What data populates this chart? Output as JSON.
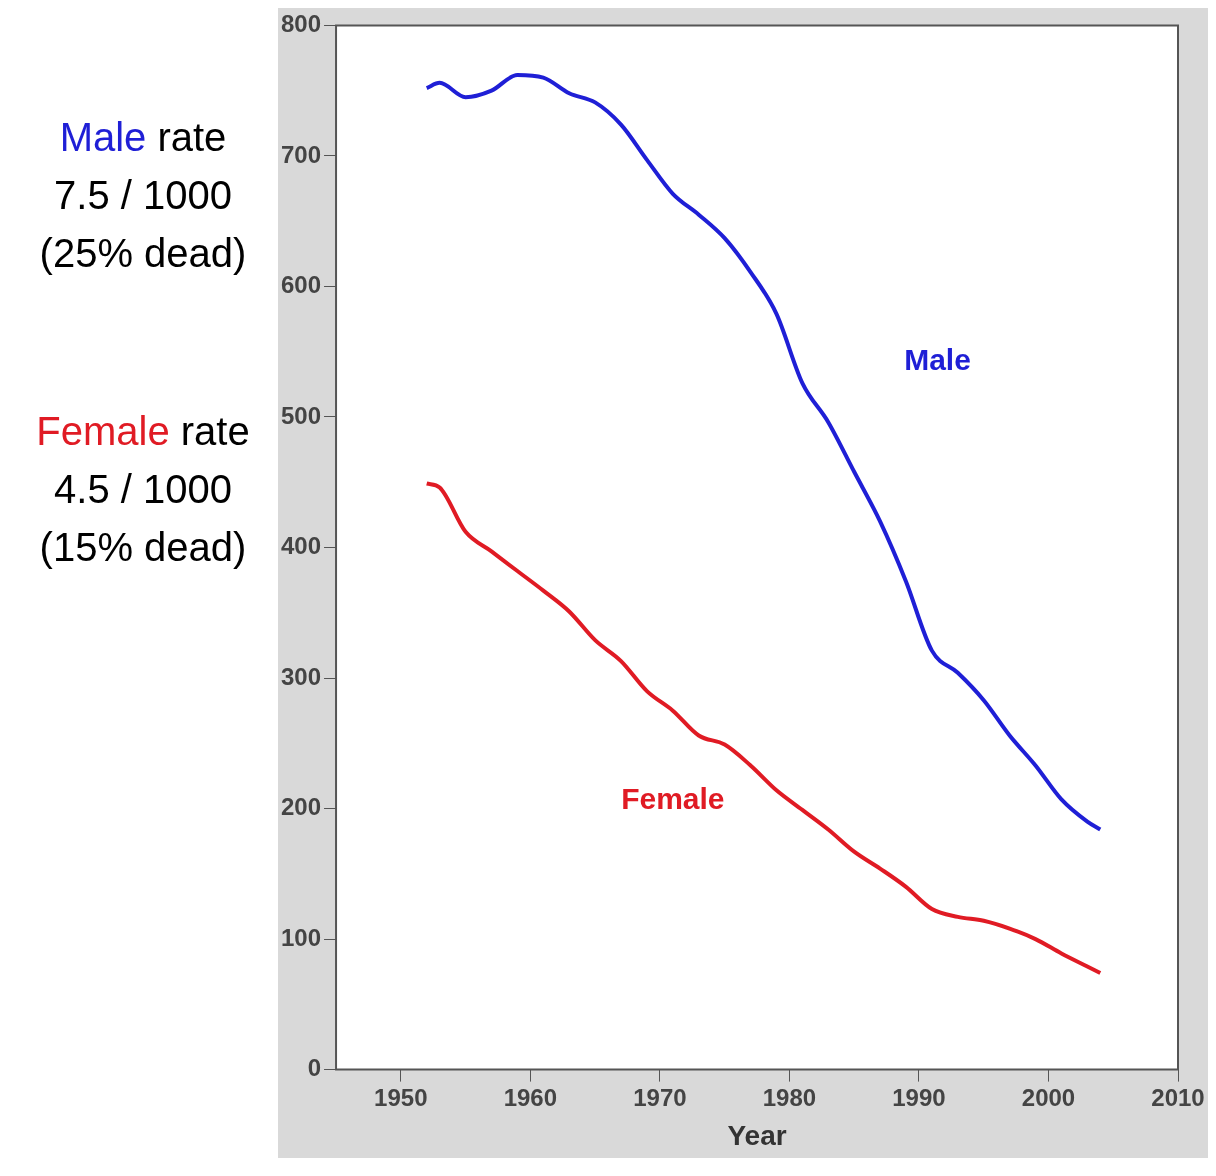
{
  "chart_data": {
    "type": "line",
    "xlabel": "Year",
    "xlim": [
      1945,
      2010
    ],
    "xticks": [
      1950,
      1960,
      1970,
      1980,
      1990,
      2000,
      2010
    ],
    "ylim": [
      0,
      800
    ],
    "yticks": [
      0,
      100,
      200,
      300,
      400,
      500,
      600,
      700,
      800
    ],
    "grid": false,
    "legend": false,
    "marker": "none",
    "line_style": "solid",
    "x": [
      1952,
      1953,
      1955,
      1957,
      1959,
      1961,
      1963,
      1965,
      1967,
      1969,
      1971,
      1973,
      1975,
      1977,
      1979,
      1981,
      1983,
      1985,
      1987,
      1989,
      1991,
      1993,
      1995,
      1997,
      1999,
      2001,
      2003,
      2004
    ],
    "series": [
      {
        "name": "Male",
        "color": "#1f1fd6",
        "values": [
          752,
          756,
          745,
          750,
          762,
          760,
          748,
          741,
          724,
          697,
          671,
          655,
          637,
          611,
          579,
          526,
          496,
          458,
          420,
          374,
          321,
          304,
          283,
          256,
          233,
          207,
          190,
          184
        ]
      },
      {
        "name": "Female",
        "color": "#e01b24",
        "values": [
          449,
          446,
          412,
          397,
          382,
          367,
          351,
          329,
          313,
          290,
          275,
          256,
          249,
          233,
          214,
          199,
          184,
          167,
          154,
          140,
          123,
          117,
          114,
          108,
          100,
          89,
          79,
          74
        ]
      }
    ],
    "annotations": [
      "Male rate\n7.5 / 1000\n(25% dead)",
      "Female rate\n4.5 / 1000\n(15% dead)"
    ]
  }
}
